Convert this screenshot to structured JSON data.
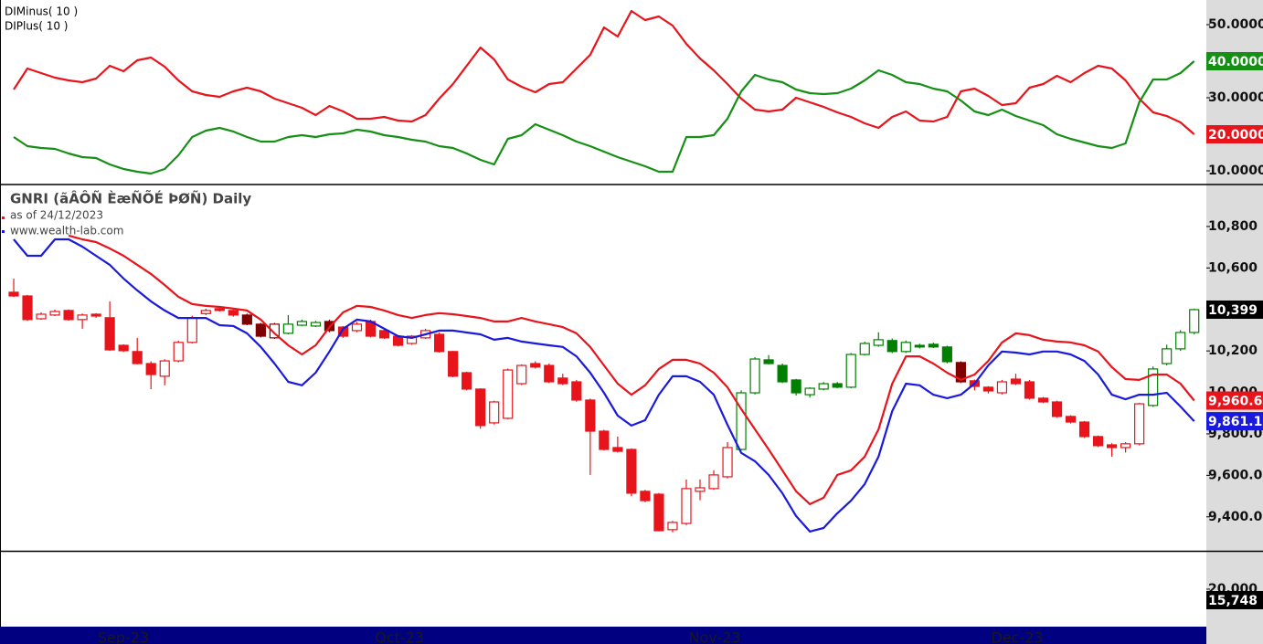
{
  "chart_data": [
    {
      "type": "line",
      "series": [
        {
          "name": "DIMinus( 10 )",
          "color": "#e8141b",
          "last_value_label": "20.0000",
          "values": [
            32.25,
            38.0,
            36.75,
            35.5,
            34.75,
            34.25,
            35.25,
            38.75,
            37.25,
            40.25,
            41.0,
            38.5,
            34.75,
            31.75,
            30.75,
            30.25,
            31.75,
            32.75,
            31.75,
            29.75,
            28.5,
            27.25,
            25.25,
            27.75,
            26.25,
            24.25,
            24.25,
            24.75,
            23.75,
            23.5,
            25.25,
            29.75,
            33.75,
            38.75,
            43.75,
            40.5,
            35.0,
            33.0,
            31.5,
            33.75,
            34.25,
            38.0,
            41.75,
            49.25,
            46.75,
            53.75,
            51.25,
            52.25,
            49.75,
            44.75,
            40.75,
            37.5,
            33.75,
            29.75,
            26.75,
            26.25,
            26.75,
            30.0,
            28.75,
            27.5,
            26.0,
            24.75,
            23.0,
            21.75,
            24.75,
            26.25,
            23.75,
            23.5,
            24.75,
            31.75,
            32.5,
            30.5,
            28.0,
            28.5,
            32.75,
            33.75,
            36.0,
            34.25,
            36.75,
            38.75,
            38.0,
            34.75,
            29.75,
            26.0,
            25.0,
            23.25,
            20.0
          ]
        },
        {
          "name": "DIPlus( 10 )",
          "color": "#159015",
          "last_value_label": "40.0000",
          "values": [
            19.25,
            16.75,
            16.25,
            16.0,
            14.75,
            13.75,
            13.5,
            11.75,
            10.5,
            9.75,
            9.25,
            10.5,
            14.25,
            19.25,
            21.0,
            21.75,
            20.75,
            19.25,
            18.0,
            18.0,
            19.25,
            19.75,
            19.25,
            20.0,
            20.25,
            21.25,
            20.75,
            19.75,
            19.25,
            18.5,
            18.0,
            16.75,
            16.25,
            14.75,
            13.0,
            11.75,
            18.75,
            19.75,
            22.75,
            21.25,
            19.75,
            18.0,
            16.75,
            15.25,
            13.75,
            12.5,
            11.25,
            9.75,
            9.75,
            19.25,
            19.25,
            19.75,
            24.25,
            31.75,
            36.25,
            35.0,
            34.25,
            32.25,
            31.25,
            31.0,
            31.25,
            32.5,
            34.75,
            37.5,
            36.25,
            34.25,
            33.75,
            32.5,
            31.75,
            29.25,
            26.25,
            25.25,
            26.75,
            25.0,
            23.75,
            22.5,
            20.0,
            18.75,
            17.75,
            16.75,
            16.25,
            17.5,
            28.75,
            35.0,
            35.0,
            36.75,
            40.0
          ]
        }
      ],
      "ylim": [
        6.75,
        56.75
      ],
      "yticks": [
        {
          "value": 10,
          "label": "10.0000"
        },
        {
          "value": 20,
          "label": "20.0000"
        },
        {
          "value": 30,
          "label": "30.0000"
        },
        {
          "value": 40,
          "label": "40.0000"
        },
        {
          "value": 50,
          "label": "50.0000"
        }
      ]
    },
    {
      "type": "candlestick",
      "title": "GNRI (ãÂÔÑ ÈæÑÕÉ ÞØÑ) Daily",
      "subtitle": "as of 24/12/2023",
      "source": "www.wealth-lab.com",
      "x_labels": [
        "Sep-23",
        "Oct-23",
        "Nov-23",
        "Dec-23"
      ],
      "last_close_label": "10,399",
      "last_close_color": "#000000",
      "open": [
        10483,
        10465,
        10355,
        10373,
        10395,
        10351,
        10377,
        10360,
        10227,
        10197,
        10139,
        10078,
        10152,
        10241,
        10380,
        10404,
        10395,
        10373,
        10329,
        10263,
        10285,
        10324,
        10320,
        10342,
        10315,
        10298,
        10342,
        10298,
        10271,
        10236,
        10263,
        10280,
        10197,
        10095,
        10016,
        9853,
        9875,
        10042,
        10139,
        10130,
        10069,
        10051,
        9963,
        9813,
        9734,
        9725,
        9523,
        9509,
        9338,
        9368,
        9523,
        9536,
        9593,
        9725,
        9998,
        10157,
        10130,
        10060,
        9989,
        10016,
        10042,
        10025,
        10183,
        10227,
        10250,
        10197,
        10227,
        10232,
        10219,
        10144,
        10056,
        10025,
        9998,
        10064,
        10051,
        9972,
        9954,
        9884,
        9857,
        9787,
        9747,
        9734,
        9752,
        9937,
        10139,
        10210,
        10289
      ],
      "high": [
        10549,
        10470,
        10386,
        10399,
        10400,
        10380,
        10382,
        10439,
        10232,
        10263,
        10150,
        10160,
        10250,
        10370,
        10404,
        10412,
        10400,
        10380,
        10335,
        10335,
        10373,
        10351,
        10345,
        10351,
        10320,
        10340,
        10351,
        10305,
        10276,
        10276,
        10307,
        10289,
        10200,
        10100,
        10020,
        9960,
        10115,
        10135,
        10150,
        10139,
        10090,
        10060,
        9970,
        9820,
        9787,
        9730,
        9530,
        9515,
        9380,
        9580,
        9580,
        9625,
        9760,
        10010,
        10170,
        10180,
        10139,
        10065,
        10025,
        10050,
        10050,
        10190,
        10245,
        10290,
        10260,
        10250,
        10235,
        10240,
        10225,
        10150,
        10062,
        10030,
        10060,
        10090,
        10060,
        9978,
        9960,
        9890,
        9862,
        9792,
        9755,
        9760,
        9950,
        10125,
        10230,
        10300,
        10404
      ],
      "low": [
        10460,
        10345,
        10350,
        10368,
        10346,
        10307,
        10360,
        10200,
        10195,
        10135,
        10016,
        10034,
        10145,
        10236,
        10373,
        10390,
        10365,
        10324,
        10265,
        10258,
        10280,
        10320,
        10315,
        10290,
        10263,
        10290,
        10265,
        10258,
        10222,
        10230,
        10258,
        10192,
        10073,
        10010,
        9825,
        9845,
        9870,
        10035,
        10115,
        10045,
        10035,
        9955,
        9602,
        9720,
        9710,
        9500,
        9470,
        9330,
        9325,
        9360,
        9480,
        9530,
        9585,
        9720,
        9990,
        10135,
        10045,
        9985,
        9975,
        10010,
        10020,
        10020,
        10178,
        10220,
        10190,
        10190,
        10212,
        10214,
        10140,
        10045,
        10010,
        9995,
        9990,
        10035,
        9965,
        9948,
        9878,
        9850,
        9780,
        9736,
        9690,
        9710,
        9745,
        9930,
        10130,
        10200,
        10280
      ],
      "close": [
        10465,
        10351,
        10377,
        10390,
        10351,
        10373,
        10368,
        10205,
        10201,
        10139,
        10086,
        10152,
        10241,
        10360,
        10395,
        10395,
        10373,
        10329,
        10271,
        10329,
        10329,
        10342,
        10337,
        10298,
        10271,
        10329,
        10271,
        10263,
        10227,
        10271,
        10298,
        10197,
        10078,
        10016,
        9840,
        9954,
        10108,
        10130,
        10122,
        10051,
        10042,
        9963,
        9813,
        9725,
        9716,
        9514,
        9478,
        9333,
        9373,
        9536,
        9540,
        9602,
        9734,
        9998,
        10161,
        10139,
        10051,
        9998,
        10020,
        10042,
        10025,
        10183,
        10236,
        10254,
        10197,
        10241,
        10219,
        10219,
        10148,
        10051,
        10029,
        10007,
        10051,
        10042,
        9972,
        9954,
        9884,
        9857,
        9787,
        9743,
        9734,
        9752,
        9945,
        10113,
        10210,
        10289,
        10399
      ],
      "colors": [
        "#e8141b",
        "#e8141b",
        "#e8141b",
        "#e8141b",
        "#e8141b",
        "#e8141b",
        "#e8141b",
        "#e8141b",
        "#e8141b",
        "#e8141b",
        "#e8141b",
        "#e8141b",
        "#e8141b",
        "#e8141b",
        "#e8141b",
        "#e8141b",
        "#e8141b",
        "#800000",
        "#800000",
        "#800000",
        "#008000",
        "#008000",
        "#008000",
        "#800000",
        "#e8141b",
        "#e8141b",
        "#e8141b",
        "#e8141b",
        "#e8141b",
        "#e8141b",
        "#e8141b",
        "#e8141b",
        "#e8141b",
        "#e8141b",
        "#e8141b",
        "#e8141b",
        "#e8141b",
        "#e8141b",
        "#e8141b",
        "#e8141b",
        "#e8141b",
        "#e8141b",
        "#e8141b",
        "#e8141b",
        "#e8141b",
        "#e8141b",
        "#e8141b",
        "#e8141b",
        "#e8141b",
        "#e8141b",
        "#e8141b",
        "#e8141b",
        "#e8141b",
        "#008000",
        "#008000",
        "#008000",
        "#008000",
        "#008000",
        "#008000",
        "#008000",
        "#008000",
        "#008000",
        "#008000",
        "#008000",
        "#008000",
        "#008000",
        "#008000",
        "#008000",
        "#008000",
        "#800000",
        "#e8141b",
        "#e8141b",
        "#e8141b",
        "#e8141b",
        "#e8141b",
        "#e8141b",
        "#e8141b",
        "#e8141b",
        "#e8141b",
        "#e8141b",
        "#e8141b",
        "#e8141b",
        "#e8141b",
        "#008000",
        "#008000",
        "#008000",
        "#008000"
      ],
      "series": [
        {
          "color": "#e8141b",
          "last_value_label": "9,960.6",
          "values": [
            null,
            null,
            null,
            null,
            10756,
            10738,
            10725,
            10694,
            10659,
            10615,
            10571,
            10518,
            10461,
            10426,
            10417,
            10412,
            10404,
            10395,
            10351,
            10285,
            10227,
            10183,
            10227,
            10315,
            10386,
            10417,
            10412,
            10395,
            10373,
            10359,
            10373,
            10382,
            10377,
            10368,
            10359,
            10342,
            10342,
            10359,
            10342,
            10329,
            10315,
            10285,
            10219,
            10130,
            10042,
            9989,
            10034,
            10113,
            10157,
            10157,
            10139,
            10095,
            10025,
            9919,
            9822,
            9725,
            9624,
            9523,
            9461,
            9492,
            9602,
            9624,
            9690,
            9822,
            10042,
            10174,
            10174,
            10139,
            10095,
            10060,
            10086,
            10152,
            10241,
            10285,
            10276,
            10254,
            10245,
            10241,
            10227,
            10197,
            10122,
            10064,
            10060,
            10086,
            10086,
            10042,
            9960.6
          ]
        },
        {
          "color": "#1a1adc",
          "last_value_label": "9,861.1",
          "values": [
            10738,
            10659,
            10659,
            10738,
            10738,
            10703,
            10659,
            10615,
            10549,
            10492,
            10439,
            10395,
            10359,
            10359,
            10359,
            10324,
            10320,
            10285,
            10219,
            10139,
            10051,
            10034,
            10095,
            10197,
            10307,
            10351,
            10342,
            10307,
            10271,
            10263,
            10280,
            10298,
            10298,
            10289,
            10280,
            10254,
            10263,
            10245,
            10236,
            10227,
            10219,
            10174,
            10095,
            9998,
            9888,
            9840,
            9866,
            9989,
            10078,
            10078,
            10051,
            9989,
            9844,
            9708,
            9668,
            9602,
            9514,
            9404,
            9329,
            9346,
            9417,
            9478,
            9558,
            9690,
            9910,
            10042,
            10034,
            9989,
            9972,
            9989,
            10042,
            10130,
            10197,
            10192,
            10183,
            10197,
            10197,
            10183,
            10152,
            10086,
            9989,
            9967,
            9989,
            9989,
            9998,
            9932,
            9861.1
          ]
        }
      ],
      "ylim": [
        9236,
        10998
      ],
      "yticks": [
        {
          "value": 9400,
          "label": "9,400.0"
        },
        {
          "value": 9600,
          "label": "9,600.0"
        },
        {
          "value": 9800,
          "label": "9,800.0"
        },
        {
          "value": 10000,
          "label": "10,000"
        },
        {
          "value": 10200,
          "label": "10,200"
        },
        {
          "value": 10400,
          "label": "10,400"
        },
        {
          "value": 10600,
          "label": "10,600"
        },
        {
          "value": 10800,
          "label": "10,800"
        }
      ]
    },
    {
      "type": "volume",
      "ylim": [
        5830,
        34500
      ],
      "yticks": [
        {
          "value": 20000,
          "label": "20,000"
        }
      ],
      "last_value": 15748,
      "last_value_label": "15,748",
      "color": "#000000"
    }
  ]
}
